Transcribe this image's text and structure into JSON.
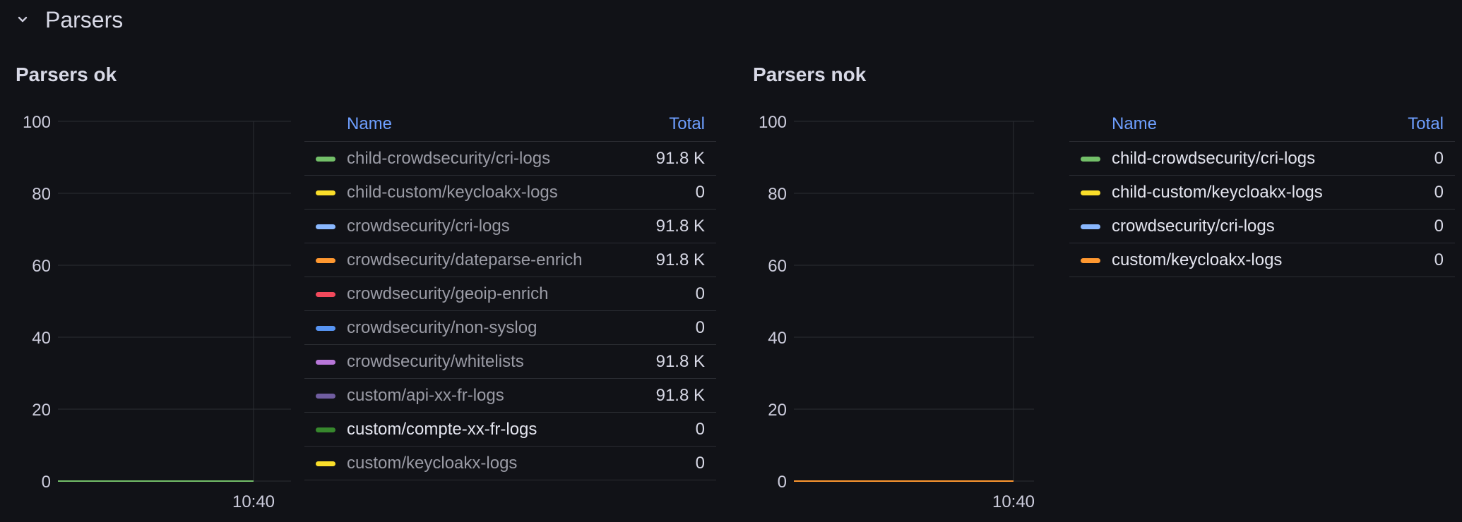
{
  "row": {
    "title": "Parsers"
  },
  "panels": [
    {
      "title": "Parsers ok",
      "chart": {
        "y_ticks": [
          "100",
          "80",
          "60",
          "40",
          "20",
          "0"
        ],
        "x_tick": "10:40"
      },
      "legend": {
        "name_header": "Name",
        "total_header": "Total",
        "rows": [
          {
            "name": "child-crowdsecurity/cri-logs",
            "total": "91.8 K",
            "color": "#73bf69"
          },
          {
            "name": "child-custom/keycloakx-logs",
            "total": "0",
            "color": "#fade2a"
          },
          {
            "name": "crowdsecurity/cri-logs",
            "total": "91.8 K",
            "color": "#8ab8ff"
          },
          {
            "name": "crowdsecurity/dateparse-enrich",
            "total": "91.8 K",
            "color": "#ff9830"
          },
          {
            "name": "crowdsecurity/geoip-enrich",
            "total": "0",
            "color": "#f2495c"
          },
          {
            "name": "crowdsecurity/non-syslog",
            "total": "0",
            "color": "#5794f2"
          },
          {
            "name": "crowdsecurity/whitelists",
            "total": "91.8 K",
            "color": "#b877d9"
          },
          {
            "name": "custom/api-xx-fr-logs",
            "total": "91.8 K",
            "color": "#705da0"
          },
          {
            "name": "custom/compte-xx-fr-logs",
            "total": "0",
            "color": "#37872d"
          },
          {
            "name": "custom/keycloakx-logs",
            "total": "0",
            "color": "#fade2a"
          }
        ]
      }
    },
    {
      "title": "Parsers nok",
      "chart": {
        "y_ticks": [
          "100",
          "80",
          "60",
          "40",
          "20",
          "0"
        ],
        "x_tick": "10:40"
      },
      "legend": {
        "name_header": "Name",
        "total_header": "Total",
        "rows": [
          {
            "name": "child-crowdsecurity/cri-logs",
            "total": "0",
            "color": "#73bf69"
          },
          {
            "name": "child-custom/keycloakx-logs",
            "total": "0",
            "color": "#fade2a"
          },
          {
            "name": "crowdsecurity/cri-logs",
            "total": "0",
            "color": "#8ab8ff"
          },
          {
            "name": "custom/keycloakx-logs",
            "total": "0",
            "color": "#ff9830"
          }
        ]
      }
    }
  ],
  "colors": {
    "background": "#111217",
    "grid": "#2b2d33",
    "header_link": "#6e9fff",
    "ok_series_line": "#73bf69",
    "nok_series_line": "#ff9830"
  },
  "icons": {
    "row_toggle": "chevron-down-icon"
  }
}
